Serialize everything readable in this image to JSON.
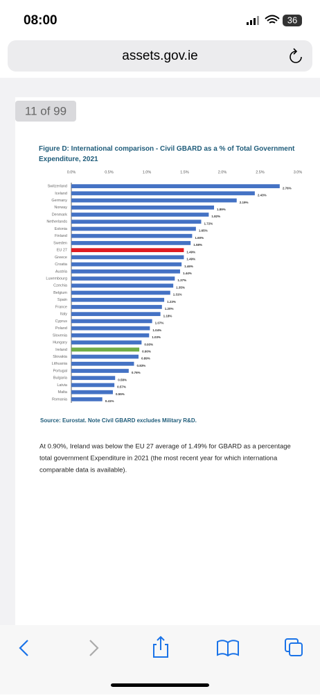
{
  "status_bar": {
    "time": "08:00",
    "battery": "36"
  },
  "url": "assets.gov.ie",
  "page_indicator": "11 of 99",
  "chart_data": {
    "type": "bar",
    "orientation": "horizontal",
    "title": "Figure D: International comparison - Civil GBARD as a % of Total Government Expenditure, 2021",
    "categories": [
      "Switzerland",
      "Iceland",
      "Germany",
      "Norway",
      "Denmark",
      "Netherlands",
      "Estonia",
      "Finland",
      "Sweden",
      "EU 27",
      "Greece",
      "Croatia",
      "Austria",
      "Luxembourg",
      "Czechia",
      "Belgium",
      "Spain",
      "France",
      "Italy",
      "Cyprus",
      "Poland",
      "Slovenia",
      "Hungary",
      "Ireland",
      "Slovakia",
      "Lithuania",
      "Portugal",
      "Bulgaria",
      "Latvia",
      "Malta",
      "Romania"
    ],
    "values": [
      2.76,
      2.43,
      2.19,
      1.89,
      1.82,
      1.72,
      1.65,
      1.6,
      1.58,
      1.49,
      1.49,
      1.46,
      1.44,
      1.37,
      1.35,
      1.31,
      1.23,
      1.2,
      1.18,
      1.07,
      1.04,
      1.03,
      0.93,
      0.9,
      0.89,
      0.83,
      0.76,
      0.58,
      0.57,
      0.55,
      0.41
    ],
    "value_labels": [
      "2.76%",
      "2.43%",
      "2.19%",
      "1.89%",
      "1.82%",
      "1.72%",
      "1.65%",
      "1.60%",
      "1.58%",
      "1.49%",
      "1.49%",
      "1.46%",
      "1.44%",
      "1.37%",
      "1.35%",
      "1.31%",
      "1.23%",
      "1.20%",
      "1.18%",
      "1.07%",
      "1.04%",
      "1.03%",
      "0.93%",
      "0.90%",
      "0.89%",
      "0.83%",
      "0.76%",
      "0.58%",
      "0.57%",
      "0.55%",
      "0.41%"
    ],
    "colors": [
      "#4472c4",
      "#4472c4",
      "#4472c4",
      "#4472c4",
      "#4472c4",
      "#4472c4",
      "#4472c4",
      "#4472c4",
      "#4472c4",
      "#e01b22",
      "#4472c4",
      "#4472c4",
      "#4472c4",
      "#4472c4",
      "#4472c4",
      "#4472c4",
      "#4472c4",
      "#4472c4",
      "#4472c4",
      "#4472c4",
      "#4472c4",
      "#4472c4",
      "#4472c4",
      "#70ad47",
      "#4472c4",
      "#4472c4",
      "#4472c4",
      "#4472c4",
      "#4472c4",
      "#4472c4",
      "#4472c4"
    ],
    "xlim": [
      0,
      3
    ],
    "xticks": [
      {
        "value": 0,
        "label": "0.0%"
      },
      {
        "value": 0.5,
        "label": "0.5%"
      },
      {
        "value": 1,
        "label": "1.0%"
      },
      {
        "value": 1.5,
        "label": "1.5%"
      },
      {
        "value": 2,
        "label": "2.0%"
      },
      {
        "value": 2.5,
        "label": "2.5%"
      },
      {
        "value": 3,
        "label": "3.0%"
      }
    ]
  },
  "source": "Source: Eurostat. Note Civil GBARD excludes Military R&D.",
  "body_lines": [
    "At 0.90%, Ireland was below the EU 27 average of 1.49% for GBARD as a percentage",
    "total government Expenditure in 2021 (the most recent year for which internationa",
    "comparable data is available)."
  ]
}
